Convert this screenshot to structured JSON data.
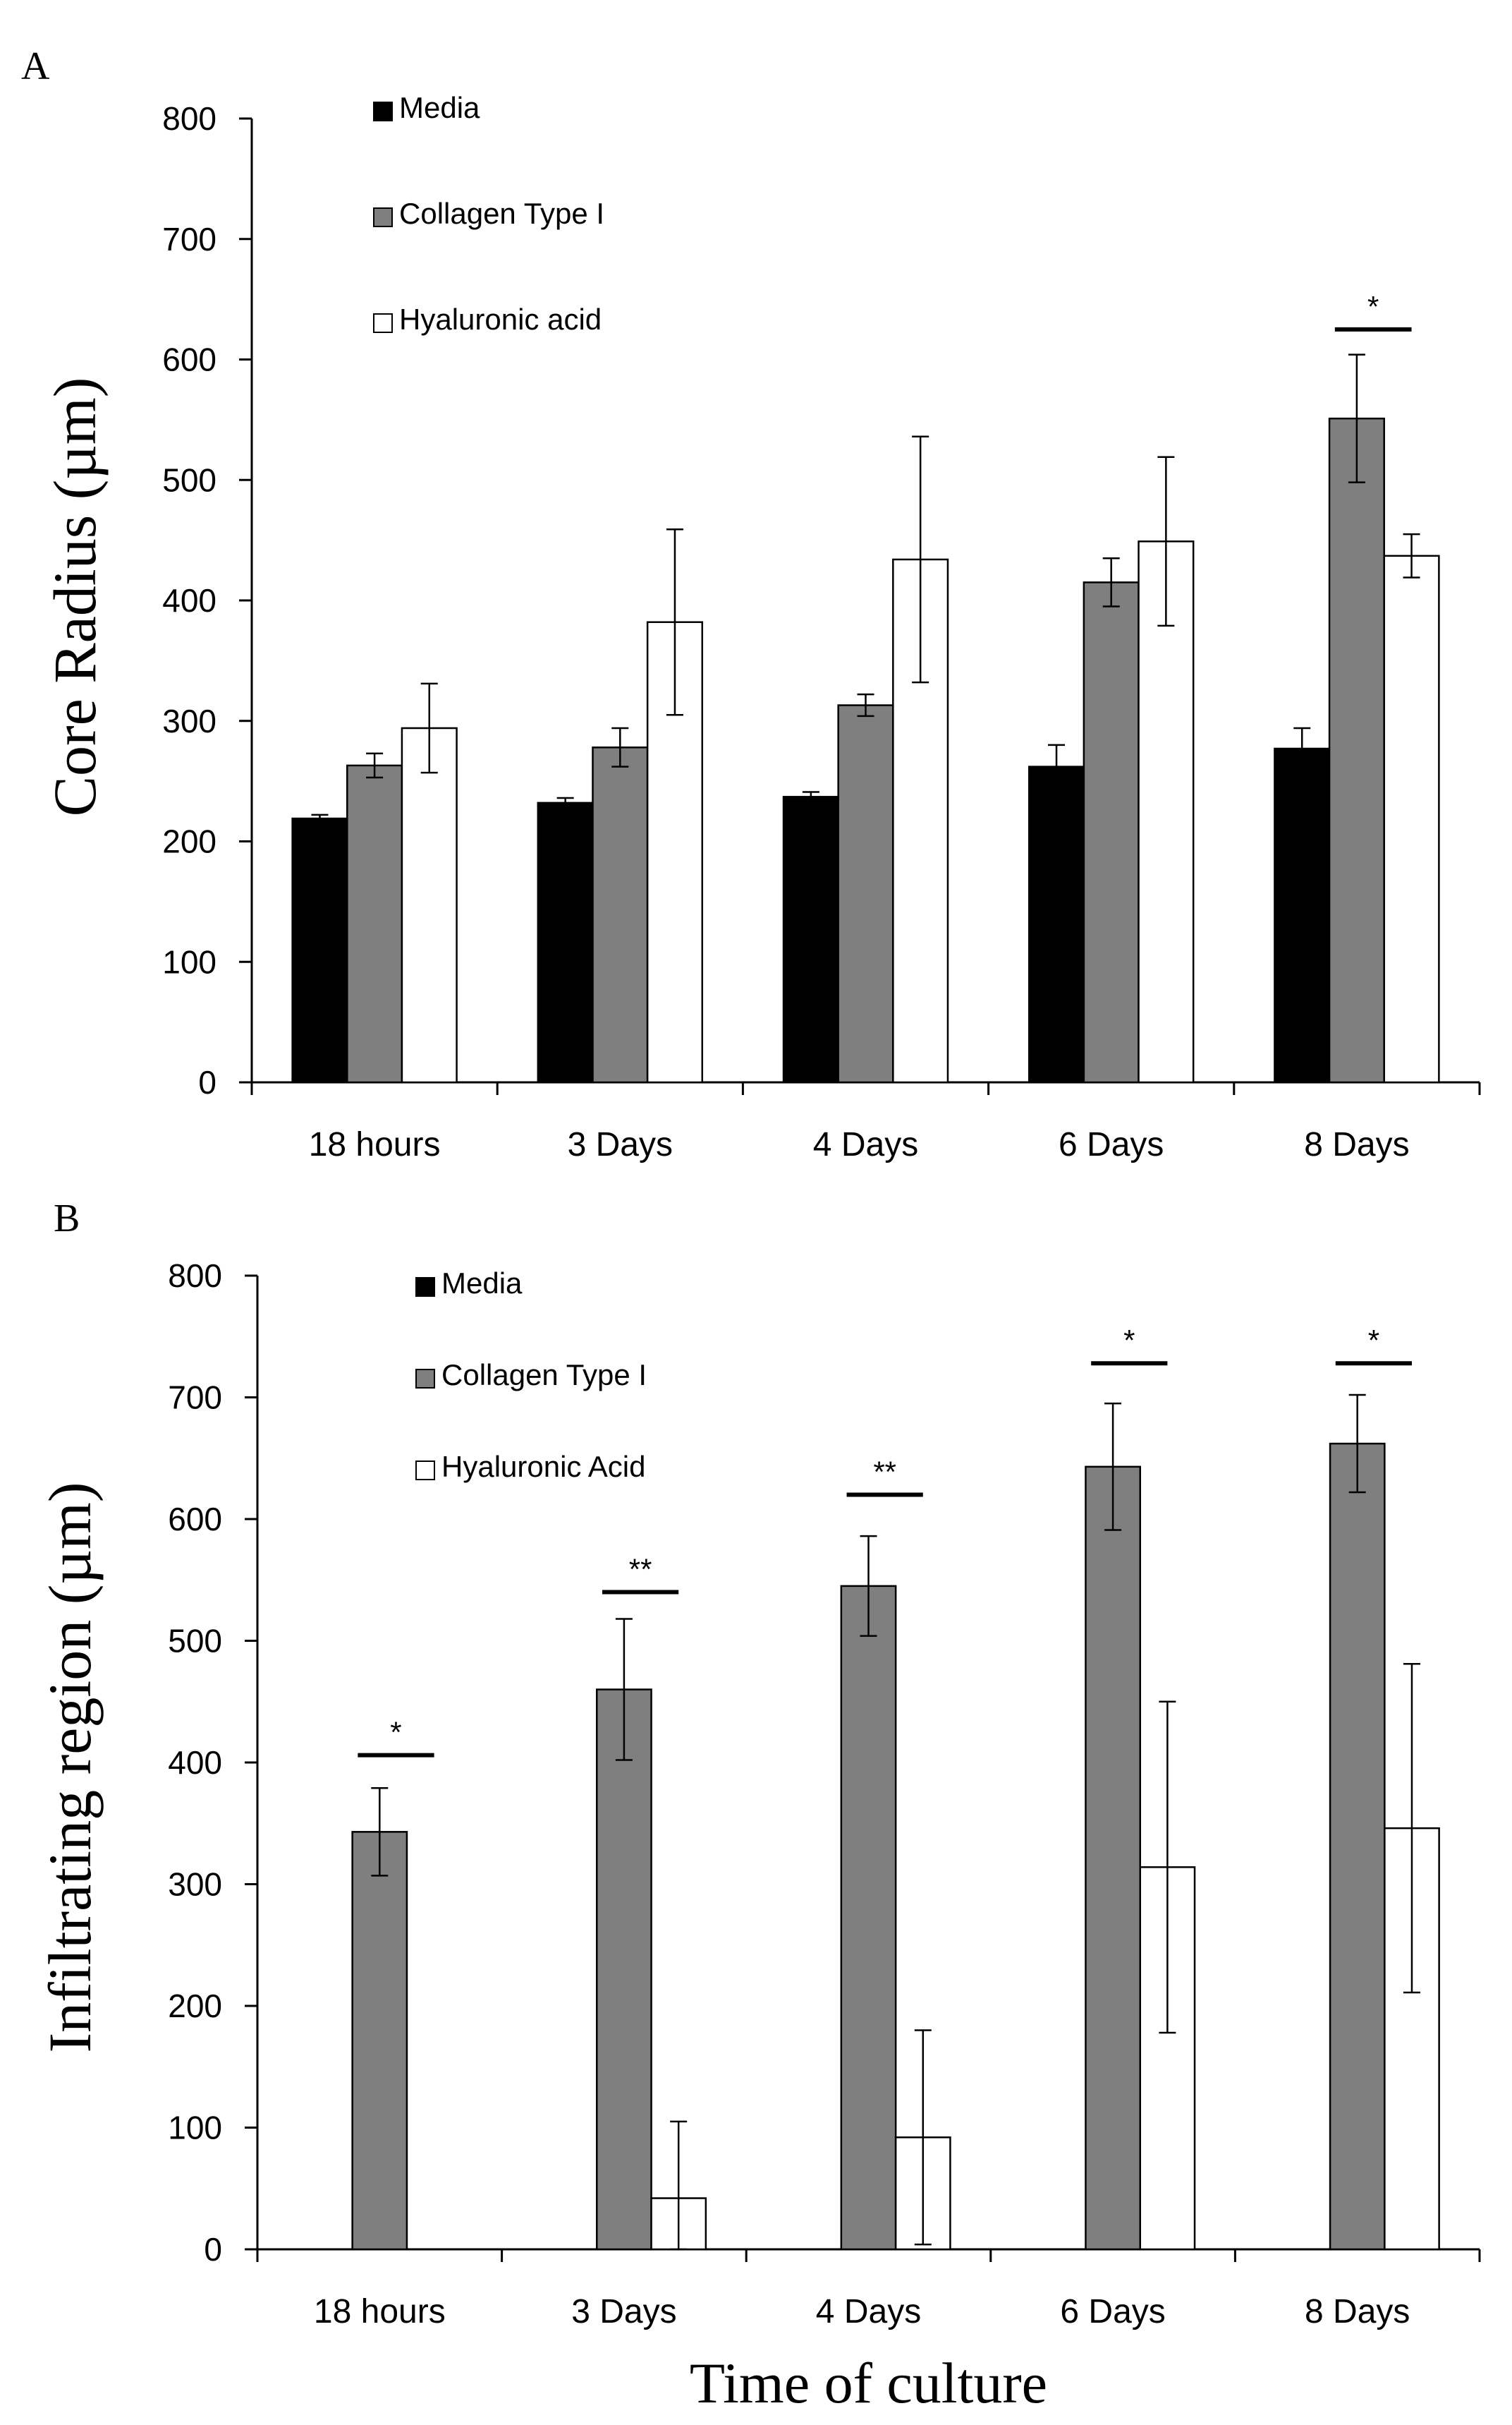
{
  "chart_data": [
    {
      "panel": "A",
      "type": "bar",
      "ylabel": "Core Radius (µm)",
      "xlabel": "",
      "ylim": [
        0,
        800
      ],
      "yticks": [
        "0",
        "100",
        "200",
        "300",
        "400",
        "500",
        "600",
        "700",
        "800"
      ],
      "categories": [
        "18 hours",
        "3 Days",
        "4 Days",
        "6 Days",
        "8 Days"
      ],
      "series": [
        {
          "name": "Media",
          "color": "#000000",
          "values": [
            219,
            232,
            237,
            262,
            277
          ],
          "errors": [
            3,
            4,
            4,
            18,
            17
          ]
        },
        {
          "name": "Collagen Type I",
          "color": "#7f7f7f",
          "values": [
            263,
            278,
            313,
            415,
            551
          ],
          "errors": [
            10,
            16,
            9,
            20,
            53
          ]
        },
        {
          "name": "Hyaluronic acid",
          "color": "#ffffff",
          "values": [
            294,
            382,
            434,
            449,
            437
          ],
          "errors": [
            37,
            77,
            102,
            70,
            18
          ]
        }
      ],
      "annotations": [
        {
          "category": "8 Days",
          "label": "*",
          "level": 625
        }
      ]
    },
    {
      "panel": "B",
      "type": "bar",
      "ylabel": "Infiltrating region (µm)",
      "xlabel": "Time of culture",
      "ylim": [
        0,
        800
      ],
      "yticks": [
        "0",
        "100",
        "200",
        "300",
        "400",
        "500",
        "600",
        "700",
        "800"
      ],
      "categories": [
        "18 hours",
        "3 Days",
        "4 Days",
        "6 Days",
        "8 Days"
      ],
      "series": [
        {
          "name": "Media",
          "color": "#000000",
          "values": [
            0,
            0,
            0,
            0,
            0
          ],
          "errors": [
            0,
            0,
            0,
            0,
            0
          ]
        },
        {
          "name": "Collagen Type I",
          "color": "#7f7f7f",
          "values": [
            343,
            460,
            545,
            643,
            662
          ],
          "errors": [
            36,
            58,
            41,
            52,
            40
          ]
        },
        {
          "name": "Hyaluronic Acid",
          "color": "#ffffff",
          "values": [
            0,
            42,
            92,
            314,
            346
          ],
          "errors": [
            0,
            63,
            88,
            136,
            135
          ]
        }
      ],
      "annotations": [
        {
          "category": "18 hours",
          "label": "*",
          "level": 406
        },
        {
          "category": "3 Days",
          "label": "**",
          "level": 540
        },
        {
          "category": "4 Days",
          "label": "**",
          "level": 620
        },
        {
          "category": "6 Days",
          "label": "*",
          "level": 728
        },
        {
          "category": "8 Days",
          "label": "*",
          "level": 728
        }
      ]
    }
  ]
}
